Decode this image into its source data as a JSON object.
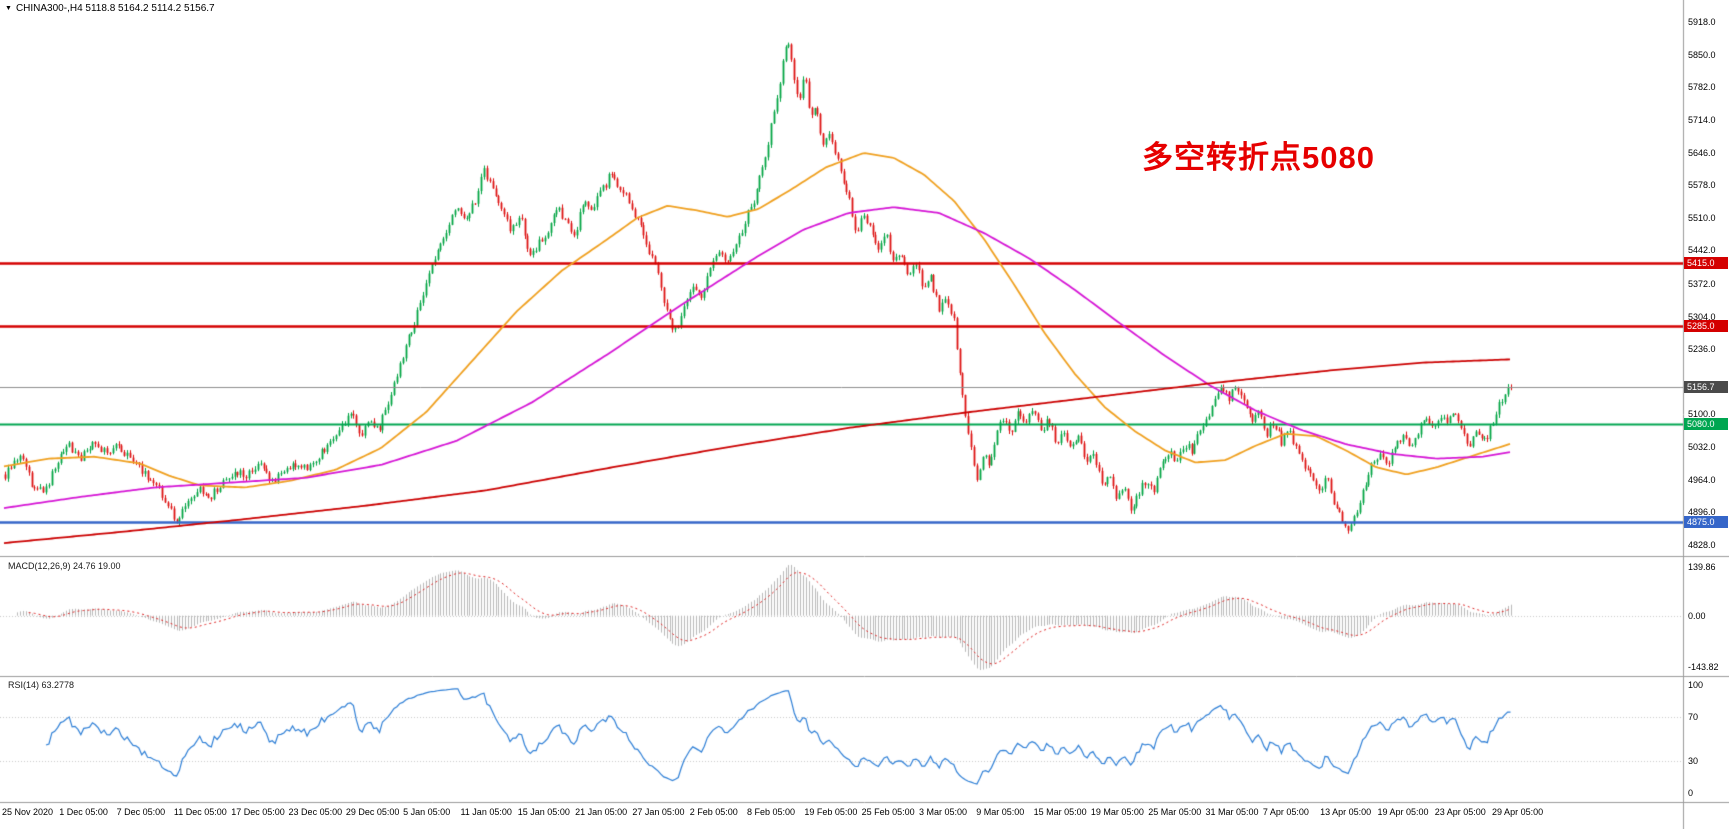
{
  "header": {
    "title": "CHINA300-,H4 5118.8 5164.2 5114.2 5156.7",
    "symbol": "CHINA300-",
    "timeframe": "H4",
    "open": "5118.8",
    "high": "5164.2",
    "low": "5114.2",
    "close": "5156.7"
  },
  "annotation": {
    "text": "多空转折点5080",
    "color": "#E60000"
  },
  "chart_data": {
    "type": "candlestick",
    "symbol": "CHINA300-",
    "timeframe": "H4",
    "title": "CHINA300-,H4 5118.8 5164.2 5114.2 5156.7",
    "last": {
      "open": 5118.8,
      "high": 5164.2,
      "low": 5114.2,
      "close": 5156.7
    },
    "price_axis": {
      "min": 4828.0,
      "max": 5918.0,
      "ticks": [
        "5918.0",
        "5850.0",
        "5782.0",
        "5714.0",
        "5646.0",
        "5578.0",
        "5510.0",
        "5442.0",
        "5372.0",
        "5304.0",
        "5236.0",
        "5100.0",
        "5032.0",
        "4964.0",
        "4896.0",
        "4828.0"
      ]
    },
    "price_badges": [
      {
        "label": "5415.0",
        "value": 5415.0,
        "bg": "#D40000"
      },
      {
        "label": "5285.0",
        "value": 5285.0,
        "bg": "#D40000"
      },
      {
        "label": "5156.7",
        "value": 5156.7,
        "bg": "#4A4A4A"
      },
      {
        "label": "5080.0",
        "value": 5080.0,
        "bg": "#00A651"
      },
      {
        "label": "4875.0",
        "value": 4875.0,
        "bg": "#3566C9"
      }
    ],
    "levels": [
      {
        "value": 5415.0,
        "color": "#D40000",
        "width": 2.4,
        "style": "horizontal"
      },
      {
        "value": 5285.0,
        "color": "#D40000",
        "width": 2.4,
        "style": "horizontal"
      },
      {
        "value": 5080.0,
        "color": "#00A651",
        "width": 2.2,
        "style": "horizontal"
      },
      {
        "value": 4875.0,
        "color": "#3566C9",
        "width": 2.6,
        "style": "horizontal"
      },
      {
        "value": 5156.7,
        "color": "#8C8C8C",
        "width": 1,
        "style": "current-price"
      }
    ],
    "time_labels": [
      "25 Nov 2020",
      "1 Dec 05:00",
      "7 Dec 05:00",
      "11 Dec 05:00",
      "17 Dec 05:00",
      "23 Dec 05:00",
      "29 Dec 05:00",
      "5 Jan 05:00",
      "11 Jan 05:00",
      "15 Jan 05:00",
      "21 Jan 05:00",
      "27 Jan 05:00",
      "2 Feb 05:00",
      "8 Feb 05:00",
      "19 Feb 05:00",
      "25 Feb 05:00",
      "3 Mar 05:00",
      "9 Mar 05:00",
      "15 Mar 05:00",
      "19 Mar 05:00",
      "25 Mar 05:00",
      "31 Mar 05:00",
      "7 Apr 05:00",
      "13 Apr 05:00",
      "19 Apr 05:00",
      "23 Apr 05:00",
      "29 Apr 05:00"
    ],
    "candles": {
      "count": 520,
      "seed": 20210429,
      "noise": 9,
      "wick": 7,
      "up_color": "#00A443",
      "down_color": "#DD1111",
      "price_path": [
        [
          0.0,
          4975
        ],
        [
          0.01,
          5020
        ],
        [
          0.018,
          4950
        ],
        [
          0.026,
          4935
        ],
        [
          0.034,
          5000
        ],
        [
          0.042,
          5035
        ],
        [
          0.05,
          5010
        ],
        [
          0.058,
          5040
        ],
        [
          0.066,
          5020
        ],
        [
          0.074,
          5035
        ],
        [
          0.082,
          5010
        ],
        [
          0.09,
          4985
        ],
        [
          0.098,
          4960
        ],
        [
          0.106,
          4925
        ],
        [
          0.113,
          4872
        ],
        [
          0.12,
          4915
        ],
        [
          0.128,
          4945
        ],
        [
          0.136,
          4930
        ],
        [
          0.144,
          4955
        ],
        [
          0.152,
          4985
        ],
        [
          0.16,
          4970
        ],
        [
          0.168,
          4998
        ],
        [
          0.176,
          4960
        ],
        [
          0.184,
          4975
        ],
        [
          0.192,
          5000
        ],
        [
          0.2,
          4985
        ],
        [
          0.208,
          5015
        ],
        [
          0.216,
          5045
        ],
        [
          0.224,
          5075
        ],
        [
          0.23,
          5100
        ],
        [
          0.236,
          5060
        ],
        [
          0.242,
          5090
        ],
        [
          0.248,
          5070
        ],
        [
          0.254,
          5120
        ],
        [
          0.26,
          5180
        ],
        [
          0.268,
          5260
        ],
        [
          0.276,
          5330
        ],
        [
          0.284,
          5420
        ],
        [
          0.292,
          5470
        ],
        [
          0.3,
          5535
        ],
        [
          0.306,
          5500
        ],
        [
          0.312,
          5545
        ],
        [
          0.318,
          5610
        ],
        [
          0.324,
          5570
        ],
        [
          0.33,
          5520
        ],
        [
          0.336,
          5480
        ],
        [
          0.342,
          5525
        ],
        [
          0.348,
          5430
        ],
        [
          0.354,
          5455
        ],
        [
          0.36,
          5485
        ],
        [
          0.366,
          5535
        ],
        [
          0.372,
          5505
        ],
        [
          0.378,
          5465
        ],
        [
          0.384,
          5550
        ],
        [
          0.39,
          5530
        ],
        [
          0.396,
          5565
        ],
        [
          0.402,
          5600
        ],
        [
          0.408,
          5570
        ],
        [
          0.414,
          5545
        ],
        [
          0.42,
          5505
        ],
        [
          0.426,
          5455
        ],
        [
          0.432,
          5415
        ],
        [
          0.438,
          5330
        ],
        [
          0.444,
          5265
        ],
        [
          0.45,
          5310
        ],
        [
          0.456,
          5370
        ],
        [
          0.462,
          5345
        ],
        [
          0.468,
          5400
        ],
        [
          0.474,
          5440
        ],
        [
          0.48,
          5415
        ],
        [
          0.486,
          5455
        ],
        [
          0.492,
          5510
        ],
        [
          0.498,
          5555
        ],
        [
          0.504,
          5625
        ],
        [
          0.51,
          5720
        ],
        [
          0.515,
          5800
        ],
        [
          0.519,
          5885
        ],
        [
          0.523,
          5820
        ],
        [
          0.527,
          5755
        ],
        [
          0.531,
          5805
        ],
        [
          0.535,
          5715
        ],
        [
          0.539,
          5745
        ],
        [
          0.543,
          5655
        ],
        [
          0.547,
          5685
        ],
        [
          0.551,
          5645
        ],
        [
          0.555,
          5610
        ],
        [
          0.56,
          5555
        ],
        [
          0.565,
          5480
        ],
        [
          0.57,
          5520
        ],
        [
          0.575,
          5490
        ],
        [
          0.58,
          5445
        ],
        [
          0.585,
          5475
        ],
        [
          0.59,
          5415
        ],
        [
          0.595,
          5440
        ],
        [
          0.6,
          5385
        ],
        [
          0.605,
          5410
        ],
        [
          0.61,
          5365
        ],
        [
          0.615,
          5385
        ],
        [
          0.62,
          5320
        ],
        [
          0.625,
          5340
        ],
        [
          0.63,
          5295
        ],
        [
          0.634,
          5180
        ],
        [
          0.638,
          5090
        ],
        [
          0.642,
          5020
        ],
        [
          0.646,
          4955
        ],
        [
          0.65,
          5025
        ],
        [
          0.654,
          4985
        ],
        [
          0.658,
          5060
        ],
        [
          0.663,
          5095
        ],
        [
          0.668,
          5055
        ],
        [
          0.673,
          5105
        ],
        [
          0.678,
          5080
        ],
        [
          0.683,
          5112
        ],
        [
          0.688,
          5060
        ],
        [
          0.693,
          5092
        ],
        [
          0.698,
          5040
        ],
        [
          0.703,
          5072
        ],
        [
          0.708,
          5025
        ],
        [
          0.713,
          5055
        ],
        [
          0.718,
          4995
        ],
        [
          0.723,
          5015
        ],
        [
          0.728,
          4955
        ],
        [
          0.733,
          4975
        ],
        [
          0.738,
          4925
        ],
        [
          0.743,
          4945
        ],
        [
          0.748,
          4905
        ],
        [
          0.753,
          4935
        ],
        [
          0.758,
          4965
        ],
        [
          0.763,
          4940
        ],
        [
          0.768,
          4992
        ],
        [
          0.773,
          5022
        ],
        [
          0.778,
          5002
        ],
        [
          0.783,
          5042
        ],
        [
          0.788,
          5022
        ],
        [
          0.793,
          5062
        ],
        [
          0.798,
          5092
        ],
        [
          0.803,
          5122
        ],
        [
          0.808,
          5152
        ],
        [
          0.813,
          5132
        ],
        [
          0.818,
          5162
        ],
        [
          0.823,
          5122
        ],
        [
          0.828,
          5082
        ],
        [
          0.833,
          5102
        ],
        [
          0.838,
          5062
        ],
        [
          0.843,
          5082
        ],
        [
          0.848,
          5042
        ],
        [
          0.853,
          5062
        ],
        [
          0.858,
          5022
        ],
        [
          0.863,
          4992
        ],
        [
          0.868,
          4975
        ],
        [
          0.873,
          4945
        ],
        [
          0.878,
          4965
        ],
        [
          0.883,
          4915
        ],
        [
          0.888,
          4880
        ],
        [
          0.893,
          4862
        ],
        [
          0.898,
          4905
        ],
        [
          0.903,
          4955
        ],
        [
          0.908,
          4995
        ],
        [
          0.913,
          5015
        ],
        [
          0.918,
          4995
        ],
        [
          0.923,
          5030
        ],
        [
          0.928,
          5055
        ],
        [
          0.933,
          5035
        ],
        [
          0.938,
          5065
        ],
        [
          0.943,
          5090
        ],
        [
          0.948,
          5070
        ],
        [
          0.953,
          5100
        ],
        [
          0.958,
          5080
        ],
        [
          0.963,
          5110
        ],
        [
          0.968,
          5060
        ],
        [
          0.973,
          5035
        ],
        [
          0.978,
          5062
        ],
        [
          0.983,
          5042
        ],
        [
          0.988,
          5082
        ],
        [
          0.993,
          5125
        ],
        [
          1.0,
          5157
        ]
      ]
    },
    "ma_lines": [
      {
        "name": "ma-fast",
        "color": "#EFA020",
        "width": 1.8,
        "path": [
          [
            0,
            4992
          ],
          [
            0.03,
            5008
          ],
          [
            0.06,
            5012
          ],
          [
            0.09,
            4998
          ],
          [
            0.11,
            4972
          ],
          [
            0.13,
            4952
          ],
          [
            0.16,
            4948
          ],
          [
            0.19,
            4962
          ],
          [
            0.22,
            4985
          ],
          [
            0.25,
            5030
          ],
          [
            0.28,
            5105
          ],
          [
            0.31,
            5210
          ],
          [
            0.34,
            5315
          ],
          [
            0.37,
            5400
          ],
          [
            0.4,
            5465
          ],
          [
            0.42,
            5510
          ],
          [
            0.44,
            5535
          ],
          [
            0.46,
            5525
          ],
          [
            0.48,
            5512
          ],
          [
            0.5,
            5528
          ],
          [
            0.52,
            5565
          ],
          [
            0.545,
            5615
          ],
          [
            0.57,
            5645
          ],
          [
            0.59,
            5635
          ],
          [
            0.61,
            5600
          ],
          [
            0.63,
            5545
          ],
          [
            0.65,
            5465
          ],
          [
            0.67,
            5370
          ],
          [
            0.69,
            5270
          ],
          [
            0.71,
            5185
          ],
          [
            0.73,
            5115
          ],
          [
            0.75,
            5065
          ],
          [
            0.77,
            5025
          ],
          [
            0.79,
            5000
          ],
          [
            0.81,
            5005
          ],
          [
            0.83,
            5035
          ],
          [
            0.85,
            5060
          ],
          [
            0.87,
            5055
          ],
          [
            0.89,
            5025
          ],
          [
            0.91,
            4990
          ],
          [
            0.93,
            4975
          ],
          [
            0.95,
            4990
          ],
          [
            0.97,
            5010
          ],
          [
            0.99,
            5030
          ],
          [
            1.0,
            5040
          ]
        ]
      },
      {
        "name": "ma-mid",
        "color": "#D516D5",
        "width": 1.8,
        "path": [
          [
            0,
            4905
          ],
          [
            0.05,
            4928
          ],
          [
            0.1,
            4948
          ],
          [
            0.15,
            4958
          ],
          [
            0.2,
            4968
          ],
          [
            0.25,
            4995
          ],
          [
            0.3,
            5045
          ],
          [
            0.35,
            5125
          ],
          [
            0.4,
            5225
          ],
          [
            0.45,
            5330
          ],
          [
            0.5,
            5430
          ],
          [
            0.53,
            5485
          ],
          [
            0.56,
            5520
          ],
          [
            0.59,
            5532
          ],
          [
            0.62,
            5520
          ],
          [
            0.65,
            5478
          ],
          [
            0.68,
            5425
          ],
          [
            0.71,
            5360
          ],
          [
            0.74,
            5290
          ],
          [
            0.77,
            5222
          ],
          [
            0.8,
            5160
          ],
          [
            0.83,
            5108
          ],
          [
            0.86,
            5068
          ],
          [
            0.89,
            5038
          ],
          [
            0.92,
            5018
          ],
          [
            0.95,
            5008
          ],
          [
            0.98,
            5012
          ],
          [
            1.0,
            5022
          ]
        ]
      },
      {
        "name": "ma-slow",
        "color": "#CB0000",
        "width": 1.8,
        "path": [
          [
            0,
            4832
          ],
          [
            0.08,
            4856
          ],
          [
            0.16,
            4882
          ],
          [
            0.24,
            4910
          ],
          [
            0.32,
            4942
          ],
          [
            0.4,
            4988
          ],
          [
            0.48,
            5032
          ],
          [
            0.56,
            5072
          ],
          [
            0.64,
            5105
          ],
          [
            0.72,
            5135
          ],
          [
            0.8,
            5165
          ],
          [
            0.88,
            5192
          ],
          [
            0.94,
            5208
          ],
          [
            1.0,
            5215
          ]
        ]
      }
    ],
    "macd": {
      "label": "MACD(12,26,9) 24.76 19.00",
      "fast": 12,
      "slow": 26,
      "signal": 9,
      "value": 24.76,
      "signal_value": 19.0,
      "axis_labels": [
        "139.86",
        "0.00",
        "-143.82"
      ],
      "histogram_color": "#B8B8B8",
      "signal_color": "#DD2222"
    },
    "rsi": {
      "label": "RSI(14) 63.2778",
      "period": 14,
      "value": 63.2778,
      "axis_labels": [
        100,
        70,
        30,
        0
      ],
      "levels": [
        70,
        30
      ],
      "color": "#2E7FD6"
    }
  }
}
